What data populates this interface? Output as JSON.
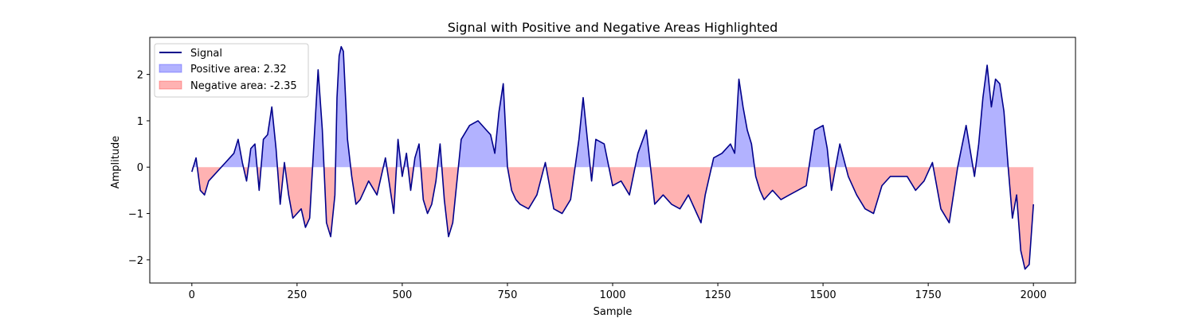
{
  "chart_data": {
    "type": "line",
    "title": "Signal with Positive and Negative Areas Highlighted",
    "xlabel": "Sample",
    "ylabel": "Amplitude",
    "xlim": [
      -100,
      2100
    ],
    "ylim": [
      -2.5,
      2.8
    ],
    "xticks": [
      0,
      250,
      500,
      750,
      1000,
      1250,
      1500,
      1750,
      2000
    ],
    "yticks": [
      -2,
      -1,
      0,
      1,
      2
    ],
    "ytick_labels": [
      "−2",
      "−1",
      "0",
      "1",
      "2"
    ],
    "grid": false,
    "legend_position": "upper-left",
    "colors": {
      "signal": "#00008b",
      "positive_fill": "#0000ff",
      "negative_fill": "#ff0000"
    },
    "series": [
      {
        "name": "Signal",
        "x": [
          0,
          10,
          20,
          30,
          40,
          60,
          80,
          100,
          110,
          120,
          130,
          140,
          150,
          160,
          170,
          180,
          190,
          200,
          210,
          220,
          230,
          240,
          250,
          260,
          270,
          280,
          290,
          300,
          310,
          320,
          330,
          340,
          345,
          350,
          355,
          360,
          370,
          380,
          390,
          400,
          410,
          420,
          440,
          460,
          470,
          480,
          490,
          500,
          510,
          520,
          530,
          540,
          550,
          560,
          570,
          580,
          590,
          600,
          610,
          620,
          640,
          660,
          680,
          700,
          710,
          720,
          730,
          740,
          750,
          760,
          770,
          780,
          800,
          820,
          840,
          860,
          880,
          900,
          920,
          930,
          940,
          950,
          960,
          980,
          1000,
          1020,
          1040,
          1060,
          1080,
          1100,
          1120,
          1140,
          1160,
          1180,
          1200,
          1210,
          1220,
          1240,
          1260,
          1280,
          1290,
          1300,
          1310,
          1320,
          1330,
          1340,
          1350,
          1360,
          1380,
          1400,
          1420,
          1440,
          1460,
          1470,
          1480,
          1500,
          1510,
          1520,
          1530,
          1540,
          1560,
          1580,
          1600,
          1620,
          1640,
          1660,
          1680,
          1700,
          1720,
          1740,
          1760,
          1780,
          1800,
          1820,
          1840,
          1860,
          1870,
          1880,
          1890,
          1900,
          1910,
          1920,
          1930,
          1940,
          1950,
          1960,
          1970,
          1980,
          1990,
          2000
        ],
        "values": [
          -0.1,
          0.2,
          -0.5,
          -0.6,
          -0.3,
          -0.1,
          0.1,
          0.3,
          0.6,
          0.1,
          -0.3,
          0.4,
          0.5,
          -0.5,
          0.6,
          0.7,
          1.3,
          0.4,
          -0.8,
          0.1,
          -0.6,
          -1.1,
          -1.0,
          -0.9,
          -1.3,
          -1.1,
          0.5,
          2.1,
          0.8,
          -1.2,
          -1.5,
          -0.6,
          1.5,
          2.4,
          2.6,
          2.5,
          0.6,
          -0.2,
          -0.8,
          -0.7,
          -0.5,
          -0.3,
          -0.6,
          0.2,
          -0.4,
          -1.0,
          0.6,
          -0.2,
          0.3,
          -0.5,
          0.2,
          0.5,
          -0.7,
          -1.0,
          -0.8,
          -0.3,
          0.5,
          -0.7,
          -1.5,
          -1.2,
          0.6,
          0.9,
          1.0,
          0.8,
          0.7,
          0.3,
          1.2,
          1.8,
          0.0,
          -0.5,
          -0.7,
          -0.8,
          -0.9,
          -0.6,
          0.1,
          -0.9,
          -1.0,
          -0.7,
          0.6,
          1.5,
          0.6,
          -0.3,
          0.6,
          0.5,
          -0.4,
          -0.3,
          -0.6,
          0.3,
          0.8,
          -0.8,
          -0.6,
          -0.8,
          -0.9,
          -0.6,
          -1.0,
          -1.2,
          -0.6,
          0.2,
          0.3,
          0.5,
          0.3,
          1.9,
          1.3,
          0.8,
          0.5,
          -0.2,
          -0.5,
          -0.7,
          -0.5,
          -0.7,
          -0.6,
          -0.5,
          -0.4,
          0.2,
          0.8,
          0.9,
          0.4,
          -0.5,
          0.0,
          0.5,
          -0.2,
          -0.6,
          -0.9,
          -1.0,
          -0.4,
          -0.2,
          -0.2,
          -0.2,
          -0.5,
          -0.3,
          0.1,
          -0.9,
          -1.2,
          0.0,
          0.9,
          -0.2,
          0.5,
          1.5,
          2.2,
          1.3,
          1.9,
          1.8,
          1.2,
          0.0,
          -1.1,
          -0.6,
          -1.8,
          -2.2,
          -2.1,
          -0.8
        ]
      }
    ],
    "legend": [
      {
        "label": "Signal",
        "kind": "line"
      },
      {
        "label": "Positive area: 2.32",
        "kind": "positive"
      },
      {
        "label": "Negative area: -2.35",
        "kind": "negative"
      }
    ]
  }
}
